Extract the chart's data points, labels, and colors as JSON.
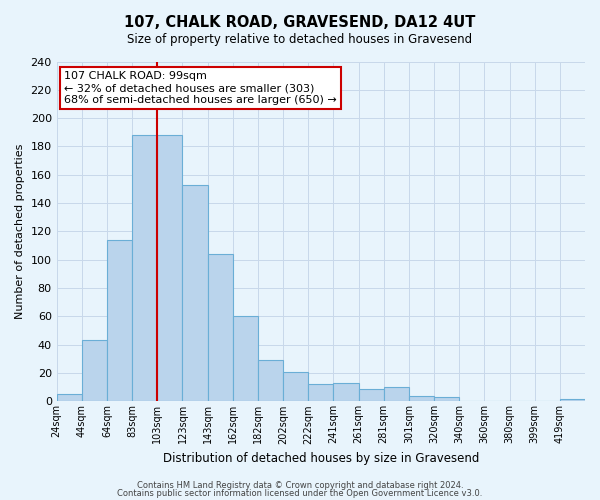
{
  "title": "107, CHALK ROAD, GRAVESEND, DA12 4UT",
  "subtitle": "Size of property relative to detached houses in Gravesend",
  "xlabel": "Distribution of detached houses by size in Gravesend",
  "ylabel": "Number of detached properties",
  "bar_labels": [
    "24sqm",
    "44sqm",
    "64sqm",
    "83sqm",
    "103sqm",
    "123sqm",
    "143sqm",
    "162sqm",
    "182sqm",
    "202sqm",
    "222sqm",
    "241sqm",
    "261sqm",
    "281sqm",
    "301sqm",
    "320sqm",
    "340sqm",
    "360sqm",
    "380sqm",
    "399sqm",
    "419sqm"
  ],
  "bar_values": [
    5,
    43,
    114,
    188,
    188,
    153,
    104,
    60,
    29,
    21,
    12,
    13,
    9,
    10,
    4,
    3,
    0,
    0,
    0,
    0,
    2
  ],
  "bar_color": "#bad4ec",
  "bar_edge_color": "#6aaed6",
  "grid_color": "#c8d8ea",
  "background_color": "#e8f4fc",
  "vline_x": 4,
  "vline_color": "#cc0000",
  "annotation_title": "107 CHALK ROAD: 99sqm",
  "annotation_line1": "← 32% of detached houses are smaller (303)",
  "annotation_line2": "68% of semi-detached houses are larger (650) →",
  "annotation_box_color": "#ffffff",
  "annotation_box_edge": "#cc0000",
  "ylim": [
    0,
    240
  ],
  "yticks": [
    0,
    20,
    40,
    60,
    80,
    100,
    120,
    140,
    160,
    180,
    200,
    220,
    240
  ],
  "footer_line1": "Contains HM Land Registry data © Crown copyright and database right 2024.",
  "footer_line2": "Contains public sector information licensed under the Open Government Licence v3.0."
}
